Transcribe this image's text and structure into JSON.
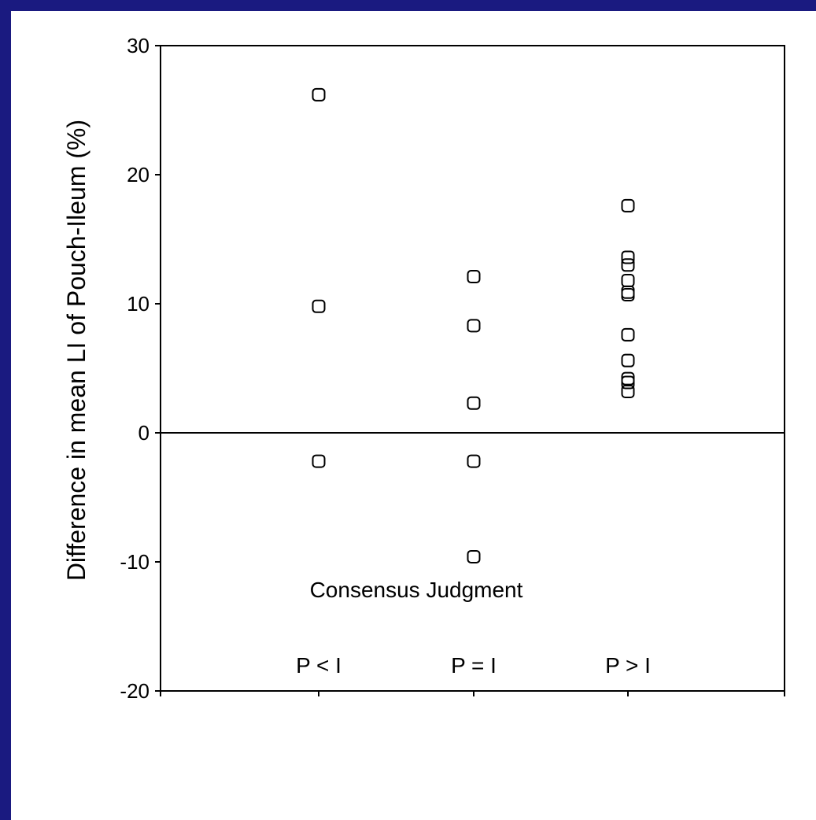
{
  "slide": {
    "background_color": "#ffffff",
    "frame_color": "#1a1a80"
  },
  "chart_data": {
    "type": "scatter",
    "xlabel": "Consensus Judgment",
    "ylabel": "Difference in mean LI of Pouch-Ileum (%)",
    "categories": [
      "P < I",
      "P = I",
      "P > I"
    ],
    "ylim": [
      -20,
      30
    ],
    "yticks": [
      30,
      20,
      10,
      0,
      -10,
      -20
    ],
    "reference_line_y": 0,
    "grid": false,
    "marker": "open-square",
    "points": [
      {
        "category": "P < I",
        "y": 26.2
      },
      {
        "category": "P < I",
        "y": 9.8
      },
      {
        "category": "P < I",
        "y": -2.2
      },
      {
        "category": "P = I",
        "y": 12.1
      },
      {
        "category": "P = I",
        "y": 8.3
      },
      {
        "category": "P = I",
        "y": 2.3
      },
      {
        "category": "P = I",
        "y": -2.2
      },
      {
        "category": "P = I",
        "y": -9.6
      },
      {
        "category": "P > I",
        "y": 17.6
      },
      {
        "category": "P > I",
        "y": 13.6
      },
      {
        "category": "P > I",
        "y": 13.0
      },
      {
        "category": "P > I",
        "y": 11.8
      },
      {
        "category": "P > I",
        "y": 10.9
      },
      {
        "category": "P > I",
        "y": 10.7
      },
      {
        "category": "P > I",
        "y": 7.6
      },
      {
        "category": "P > I",
        "y": 5.6
      },
      {
        "category": "P > I",
        "y": 4.2
      },
      {
        "category": "P > I",
        "y": 3.9
      },
      {
        "category": "P > I",
        "y": 3.2
      }
    ]
  }
}
